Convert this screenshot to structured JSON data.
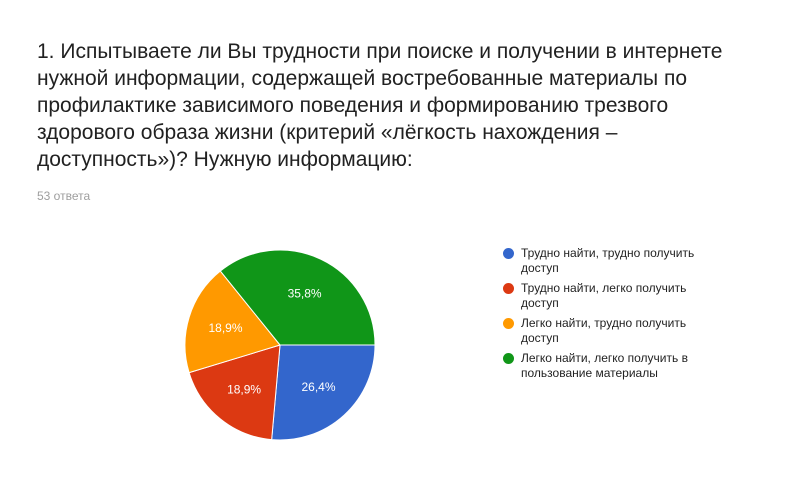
{
  "question": {
    "title": "1. Испытываете ли Вы трудности при поиске и получении в интернете нужной информации, содержащей востребованные материалы по профилактике зависимого поведения и формированию трезвого здорового образа жизни (критерий «лёгкость нахождения – доступность»)? Нужную информацию:",
    "response_count": "53 ответа"
  },
  "chart_data": {
    "type": "pie",
    "title": "",
    "legend_position": "right",
    "slices": [
      {
        "label": "Трудно найти, трудно получить доступ",
        "value": 26.4,
        "display": "26,4%",
        "color": "#3366cc"
      },
      {
        "label": "Трудно найти, легко получить доступ",
        "value": 18.9,
        "display": "18,9%",
        "color": "#dc3912"
      },
      {
        "label": "Легко найти, трудно получить доступ",
        "value": 18.9,
        "display": "18,9%",
        "color": "#ff9900"
      },
      {
        "label": "Легко найти, легко получить в пользование материалы",
        "value": 35.8,
        "display": "35,8%",
        "color": "#109618"
      }
    ]
  }
}
